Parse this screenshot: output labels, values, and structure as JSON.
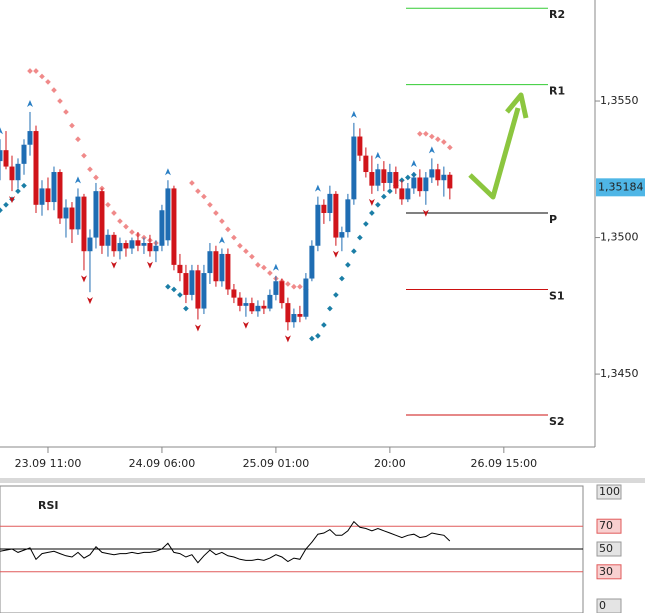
{
  "chart_data": [
    {
      "type": "candlestick",
      "xlim": [
        0,
        99.2
      ],
      "xticks": [
        {
          "value": 8,
          "label": "23.09 11:00"
        },
        {
          "value": 27,
          "label": "24.09 06:00"
        },
        {
          "value": 46,
          "label": "25.09 01:00"
        },
        {
          "value": 65,
          "label": "20:00"
        },
        {
          "value": 84,
          "label": "26.09 15:00"
        }
      ],
      "ylim": [
        1.34233,
        1.3587
      ],
      "yticks": [
        {
          "value": 1.355,
          "label": "1,3550"
        },
        {
          "value": 1.35,
          "label": "1,3500"
        },
        {
          "value": 1.345,
          "label": "1,3450"
        }
      ],
      "up_color": "#1f6db3",
      "down_color": "#d0141a",
      "open": [
        1.3528,
        1.3532,
        1.3526,
        1.3521,
        1.3527,
        1.3534,
        1.3539,
        1.3512,
        1.3518,
        1.3513,
        1.3524,
        1.3507,
        1.3511,
        1.3503,
        1.3515,
        1.3495,
        1.35,
        1.3517,
        1.3497,
        1.3501,
        1.3495,
        1.3498,
        1.3496,
        1.3499,
        1.3497,
        1.3498,
        1.3495,
        1.3497,
        1.3499,
        1.3518,
        1.349,
        1.3487,
        1.3479,
        1.3488,
        1.3474,
        1.3487,
        1.3495,
        1.3484,
        1.3494,
        1.3481,
        1.3478,
        1.3475,
        1.3476,
        1.3473,
        1.3475,
        1.3474,
        1.3479,
        1.3484,
        1.3476,
        1.3469,
        1.3472,
        1.3471,
        1.3485,
        1.3497,
        1.3512,
        1.3509,
        1.3516,
        1.35,
        1.3502,
        1.3514,
        1.3537,
        1.353,
        1.3524,
        1.3519,
        1.3525,
        1.352,
        1.3524,
        1.3518,
        1.3514,
        1.3518,
        1.3522,
        1.3517,
        1.3522,
        1.3525,
        1.3521,
        1.3523
      ],
      "high": [
        1.3536,
        1.3539,
        1.353,
        1.3529,
        1.3536,
        1.3546,
        1.3541,
        1.3521,
        1.3522,
        1.3526,
        1.3525,
        1.3514,
        1.3513,
        1.3518,
        1.3516,
        1.3503,
        1.352,
        1.3518,
        1.3503,
        1.3502,
        1.35,
        1.3499,
        1.35,
        1.3502,
        1.35,
        1.3501,
        1.3499,
        1.3512,
        1.3521,
        1.3519,
        1.3494,
        1.349,
        1.349,
        1.349,
        1.349,
        1.3498,
        1.3497,
        1.3496,
        1.3496,
        1.3483,
        1.348,
        1.3478,
        1.3478,
        1.3477,
        1.3477,
        1.3481,
        1.3486,
        1.3485,
        1.3478,
        1.3474,
        1.3475,
        1.3487,
        1.3499,
        1.3515,
        1.3514,
        1.3519,
        1.3517,
        1.3504,
        1.3516,
        1.3542,
        1.354,
        1.3533,
        1.353,
        1.3527,
        1.3528,
        1.3527,
        1.3526,
        1.3521,
        1.352,
        1.3524,
        1.3525,
        1.3524,
        1.3529,
        1.3527,
        1.3526,
        1.3524
      ],
      "low": [
        1.3521,
        1.3525,
        1.3517,
        1.3518,
        1.3523,
        1.353,
        1.3509,
        1.3508,
        1.351,
        1.351,
        1.3505,
        1.35,
        1.3498,
        1.3501,
        1.3488,
        1.348,
        1.3496,
        1.3494,
        1.3493,
        1.3493,
        1.3492,
        1.3493,
        1.3494,
        1.3495,
        1.3494,
        1.3493,
        1.3491,
        1.3495,
        1.3497,
        1.3488,
        1.3484,
        1.3476,
        1.3477,
        1.347,
        1.3472,
        1.3483,
        1.3482,
        1.3482,
        1.3479,
        1.3476,
        1.3473,
        1.3471,
        1.3472,
        1.3471,
        1.3472,
        1.3473,
        1.3477,
        1.3474,
        1.3466,
        1.3467,
        1.3469,
        1.347,
        1.3484,
        1.3495,
        1.3505,
        1.3506,
        1.3497,
        1.3495,
        1.35,
        1.3512,
        1.3528,
        1.3522,
        1.3516,
        1.3517,
        1.3517,
        1.3518,
        1.3516,
        1.3512,
        1.3513,
        1.3516,
        1.3515,
        1.3512,
        1.352,
        1.3519,
        1.3515,
        1.3514
      ],
      "close": [
        1.3532,
        1.3526,
        1.3521,
        1.3527,
        1.3534,
        1.3539,
        1.3512,
        1.3518,
        1.3513,
        1.3524,
        1.3507,
        1.3511,
        1.3503,
        1.3515,
        1.3495,
        1.35,
        1.3517,
        1.3497,
        1.3501,
        1.3495,
        1.3498,
        1.3496,
        1.3499,
        1.3497,
        1.3498,
        1.3495,
        1.3497,
        1.351,
        1.3518,
        1.349,
        1.3487,
        1.3479,
        1.3488,
        1.3474,
        1.3487,
        1.3495,
        1.3484,
        1.3494,
        1.3481,
        1.3478,
        1.3475,
        1.3476,
        1.3473,
        1.3475,
        1.3474,
        1.3479,
        1.3484,
        1.3476,
        1.3469,
        1.3472,
        1.3471,
        1.3485,
        1.3497,
        1.3512,
        1.3509,
        1.3516,
        1.35,
        1.3502,
        1.3514,
        1.3537,
        1.353,
        1.3524,
        1.3519,
        1.3525,
        1.352,
        1.3524,
        1.3518,
        1.3514,
        1.3518,
        1.3522,
        1.3517,
        1.3522,
        1.3525,
        1.3521,
        1.3523,
        1.3518
      ],
      "sar": [
        {
          "color": "#1b7ea6",
          "values": [
            1.351,
            1.3512,
            1.3514,
            1.3517,
            1.3519,
            null,
            null,
            null,
            null,
            null,
            null,
            null,
            null,
            null,
            null,
            null,
            null,
            null,
            null,
            null,
            null,
            null,
            null,
            null,
            null,
            null,
            null,
            null,
            1.3482,
            1.3481,
            1.3479,
            1.3474,
            null,
            null,
            null,
            null,
            null,
            null,
            null,
            null,
            null,
            null,
            null,
            null,
            null,
            null,
            null,
            null,
            null,
            null,
            null,
            null,
            1.3463,
            1.3464,
            1.3468,
            1.3474,
            1.3479,
            1.3485,
            1.349,
            1.3495,
            1.35,
            1.3505,
            1.3509,
            1.3512,
            1.3515,
            1.3517,
            1.3519,
            1.3521,
            1.3522,
            1.3523,
            null,
            null,
            null,
            null,
            null,
            null
          ]
        },
        {
          "color": "#f08a8a",
          "values": [
            null,
            null,
            null,
            null,
            null,
            1.3561,
            1.3561,
            1.3559,
            1.3557,
            1.3554,
            1.355,
            1.3546,
            1.3541,
            1.3536,
            1.353,
            1.3525,
            1.3522,
            1.3518,
            1.3512,
            1.3509,
            1.3506,
            1.3504,
            1.3502,
            1.3501,
            1.35,
            1.3499,
            1.3498,
            1.3498,
            null,
            null,
            null,
            null,
            1.352,
            1.3517,
            1.3515,
            1.3512,
            1.3509,
            1.3506,
            1.3503,
            1.35,
            1.3497,
            1.3495,
            1.3493,
            1.349,
            1.3489,
            1.3487,
            1.3485,
            1.3484,
            1.3483,
            1.3482,
            1.3482,
            1.3481,
            null,
            null,
            null,
            null,
            null,
            null,
            null,
            null,
            null,
            null,
            null,
            null,
            null,
            null,
            null,
            null,
            null,
            null,
            1.3538,
            1.3538,
            1.3537,
            1.3536,
            1.3535,
            1.3533
          ]
        }
      ],
      "fractals_up": [
        0,
        5,
        13,
        28,
        37,
        46,
        53,
        59,
        63,
        69,
        72
      ],
      "fractals_down": [
        2,
        14,
        15,
        19,
        25,
        33,
        41,
        48,
        56,
        62,
        71
      ],
      "fractal_up_color": "#2a7fc4",
      "fractal_down_color": "#c8141a",
      "pivots": [
        {
          "name": "R2",
          "value": 1.3584,
          "color": "#33cc33"
        },
        {
          "name": "R1",
          "value": 1.3556,
          "color": "#33cc33"
        },
        {
          "name": "P",
          "value": 1.3509,
          "color": "#000000"
        },
        {
          "name": "S1",
          "value": 1.3481,
          "color": "#cc1111"
        },
        {
          "name": "S2",
          "value": 1.3435,
          "color": "#cc1111"
        }
      ],
      "last_price": {
        "value": 1.35184,
        "label": "1,35184"
      }
    },
    {
      "type": "line",
      "title": "RSI",
      "color": "#000000",
      "ylim": [
        0,
        100
      ],
      "yticks": [
        100,
        70,
        50,
        30,
        0
      ],
      "levels": [
        {
          "value": 70,
          "color": "#e05a5a"
        },
        {
          "value": 50,
          "color": "#000000"
        },
        {
          "value": 30,
          "color": "#e05a5a"
        }
      ],
      "values": [
        48,
        49,
        50,
        47,
        49,
        51,
        41,
        46,
        47,
        48,
        46,
        44,
        43,
        47,
        42,
        45,
        52,
        47,
        46,
        45,
        46,
        46,
        47,
        46,
        47,
        47,
        48,
        50,
        55,
        47,
        46,
        43,
        45,
        38,
        44,
        49,
        45,
        47,
        44,
        43,
        41,
        40,
        40,
        41,
        40,
        42,
        45,
        43,
        39,
        42,
        41,
        50,
        56,
        63,
        64,
        67,
        62,
        62,
        66,
        74,
        69,
        68,
        66,
        68,
        66,
        64,
        62,
        60,
        62,
        63,
        60,
        61,
        64,
        63,
        62,
        57
      ]
    }
  ]
}
